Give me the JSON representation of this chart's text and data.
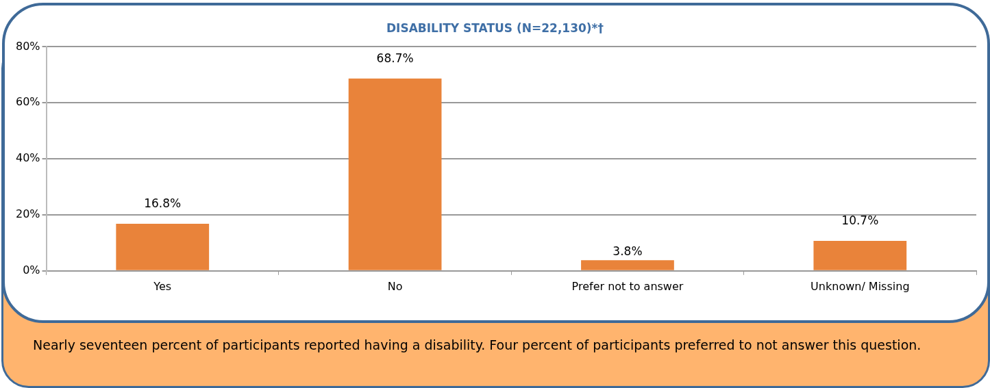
{
  "chart_data": {
    "type": "bar",
    "title": "DISABILITY STATUS (N=22,130)*†",
    "categories": [
      "Yes",
      "No",
      "Prefer not to answer",
      "Unknown/ Missing"
    ],
    "values": [
      16.8,
      68.7,
      3.8,
      10.7
    ],
    "value_labels": [
      "16.8%",
      "68.7%",
      "3.8%",
      "10.7%"
    ],
    "color": "#e9833a",
    "ylim": [
      0,
      80
    ],
    "yticks": [
      {
        "value": 0,
        "label": "0%"
      },
      {
        "value": 20,
        "label": "20%"
      },
      {
        "value": 40,
        "label": "40%"
      },
      {
        "value": 60,
        "label": "60%"
      },
      {
        "value": 80,
        "label": "80%"
      }
    ],
    "grid": "y",
    "annotations": [
      "Nearly seventeen percent of participants reported having a disability. Four percent of participants preferred to not answer this question."
    ]
  }
}
